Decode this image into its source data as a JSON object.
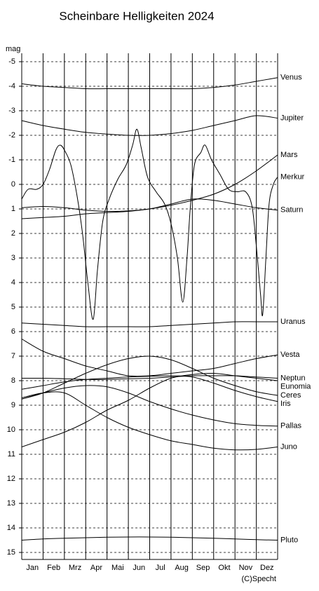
{
  "chart_data": {
    "type": "line",
    "title": "Scheinbare Helligkeiten 2024",
    "y_label": "mag",
    "credit": "(C)Specht",
    "color": "#000000",
    "grid": true,
    "y_inverted": true,
    "xlim": [
      0,
      12
    ],
    "xticks": [
      {
        "value": 0,
        "label": "Jan"
      },
      {
        "value": 1,
        "label": "Feb"
      },
      {
        "value": 2,
        "label": "Mrz"
      },
      {
        "value": 3,
        "label": "Apr"
      },
      {
        "value": 4,
        "label": "Mai"
      },
      {
        "value": 5,
        "label": "Jun"
      },
      {
        "value": 6,
        "label": "Jul"
      },
      {
        "value": 7,
        "label": "Aug"
      },
      {
        "value": 8,
        "label": "Sep"
      },
      {
        "value": 9,
        "label": "Okt"
      },
      {
        "value": 10,
        "label": "Nov"
      },
      {
        "value": 11,
        "label": "Dez"
      }
    ],
    "ylim": [
      -5,
      15
    ],
    "yticks": [
      -5,
      -4,
      -3,
      -2,
      -1,
      0,
      1,
      2,
      3,
      4,
      5,
      6,
      7,
      8,
      9,
      10,
      11,
      12,
      13,
      14,
      15
    ],
    "x": [
      0,
      1,
      2,
      3,
      4,
      5,
      6,
      7,
      8,
      9,
      10,
      11,
      12
    ],
    "series": [
      {
        "name": "Venus",
        "values": [
          -4.1,
          -4.0,
          -3.95,
          -3.9,
          -3.9,
          -3.9,
          -3.9,
          -3.9,
          -3.9,
          -3.95,
          -4.05,
          -4.2,
          -4.35
        ]
      },
      {
        "name": "Jupiter",
        "values": [
          -2.6,
          -2.4,
          -2.25,
          -2.12,
          -2.05,
          -2.0,
          -2.0,
          -2.07,
          -2.2,
          -2.4,
          -2.6,
          -2.8,
          -2.7
        ]
      },
      {
        "name": "Mars",
        "values": [
          1.4,
          1.35,
          1.3,
          1.2,
          1.15,
          1.1,
          1.0,
          0.85,
          0.65,
          0.4,
          0.0,
          -0.55,
          -1.2
        ]
      },
      {
        "name": "Merkur",
        "x": [
          0,
          0.3,
          0.7,
          1.0,
          1.3,
          1.6,
          1.8,
          2.0,
          2.3,
          2.6,
          2.85,
          3.1,
          3.35,
          3.55,
          3.8,
          4.1,
          4.5,
          4.9,
          5.2,
          5.4,
          5.6,
          5.9,
          6.3,
          6.7,
          7.0,
          7.3,
          7.55,
          7.75,
          7.9,
          8.1,
          8.4,
          8.6,
          8.9,
          9.3,
          9.7,
          10.1,
          10.5,
          10.8,
          11.0,
          11.2,
          11.3,
          11.45,
          11.6,
          11.8,
          12.0
        ],
        "values": [
          0.6,
          0.2,
          0.2,
          0.0,
          -0.6,
          -1.4,
          -1.6,
          -1.4,
          -0.8,
          0.5,
          2.0,
          4.0,
          5.5,
          3.5,
          1.5,
          0.6,
          -0.2,
          -0.8,
          -1.6,
          -2.25,
          -1.5,
          -0.3,
          0.3,
          0.8,
          1.6,
          3.0,
          4.8,
          3.0,
          1.0,
          -0.8,
          -1.3,
          -1.6,
          -1.0,
          -0.4,
          0.2,
          0.3,
          0.3,
          0.9,
          2.5,
          4.5,
          5.3,
          3.0,
          0.8,
          0.0,
          -0.3
        ]
      },
      {
        "name": "Saturn",
        "values": [
          0.95,
          0.9,
          0.95,
          1.05,
          1.1,
          1.08,
          1.0,
          0.8,
          0.6,
          0.65,
          0.8,
          0.95,
          1.05
        ]
      },
      {
        "name": "Uranus",
        "values": [
          5.65,
          5.7,
          5.75,
          5.8,
          5.8,
          5.8,
          5.8,
          5.75,
          5.7,
          5.65,
          5.6,
          5.6,
          5.6
        ]
      },
      {
        "name": "Vesta",
        "values": [
          6.3,
          6.8,
          7.1,
          7.4,
          7.6,
          7.8,
          7.8,
          7.7,
          7.6,
          7.5,
          7.3,
          7.1,
          6.95
        ]
      },
      {
        "name": "Neptun",
        "values": [
          7.9,
          7.9,
          7.92,
          7.95,
          7.95,
          7.92,
          7.9,
          7.85,
          7.8,
          7.8,
          7.8,
          7.85,
          7.9
        ]
      },
      {
        "name": "Eunomia",
        "values": [
          10.7,
          10.4,
          10.1,
          9.7,
          9.2,
          8.8,
          8.3,
          7.9,
          7.75,
          7.7,
          7.8,
          7.9,
          8.0
        ]
      },
      {
        "name": "Ceres",
        "values": [
          8.75,
          8.5,
          8.1,
          7.7,
          7.35,
          7.1,
          7.0,
          7.15,
          7.5,
          7.9,
          8.2,
          8.45,
          8.6
        ]
      },
      {
        "name": "Iris",
        "values": [
          8.35,
          8.2,
          8.05,
          7.95,
          7.9,
          7.85,
          7.82,
          7.8,
          7.85,
          8.1,
          8.4,
          8.65,
          8.85
        ]
      },
      {
        "name": "Pallas",
        "values": [
          8.75,
          8.5,
          8.3,
          8.2,
          8.25,
          8.5,
          8.85,
          9.15,
          9.4,
          9.6,
          9.75,
          9.82,
          9.85
        ]
      },
      {
        "name": "Juno",
        "values": [
          8.7,
          8.5,
          8.5,
          9.0,
          9.5,
          9.9,
          10.2,
          10.45,
          10.6,
          10.75,
          10.82,
          10.8,
          10.7
        ]
      },
      {
        "name": "Pluto",
        "values": [
          14.5,
          14.45,
          14.42,
          14.4,
          14.38,
          14.37,
          14.37,
          14.38,
          14.4,
          14.42,
          14.45,
          14.48,
          14.5
        ]
      }
    ]
  }
}
